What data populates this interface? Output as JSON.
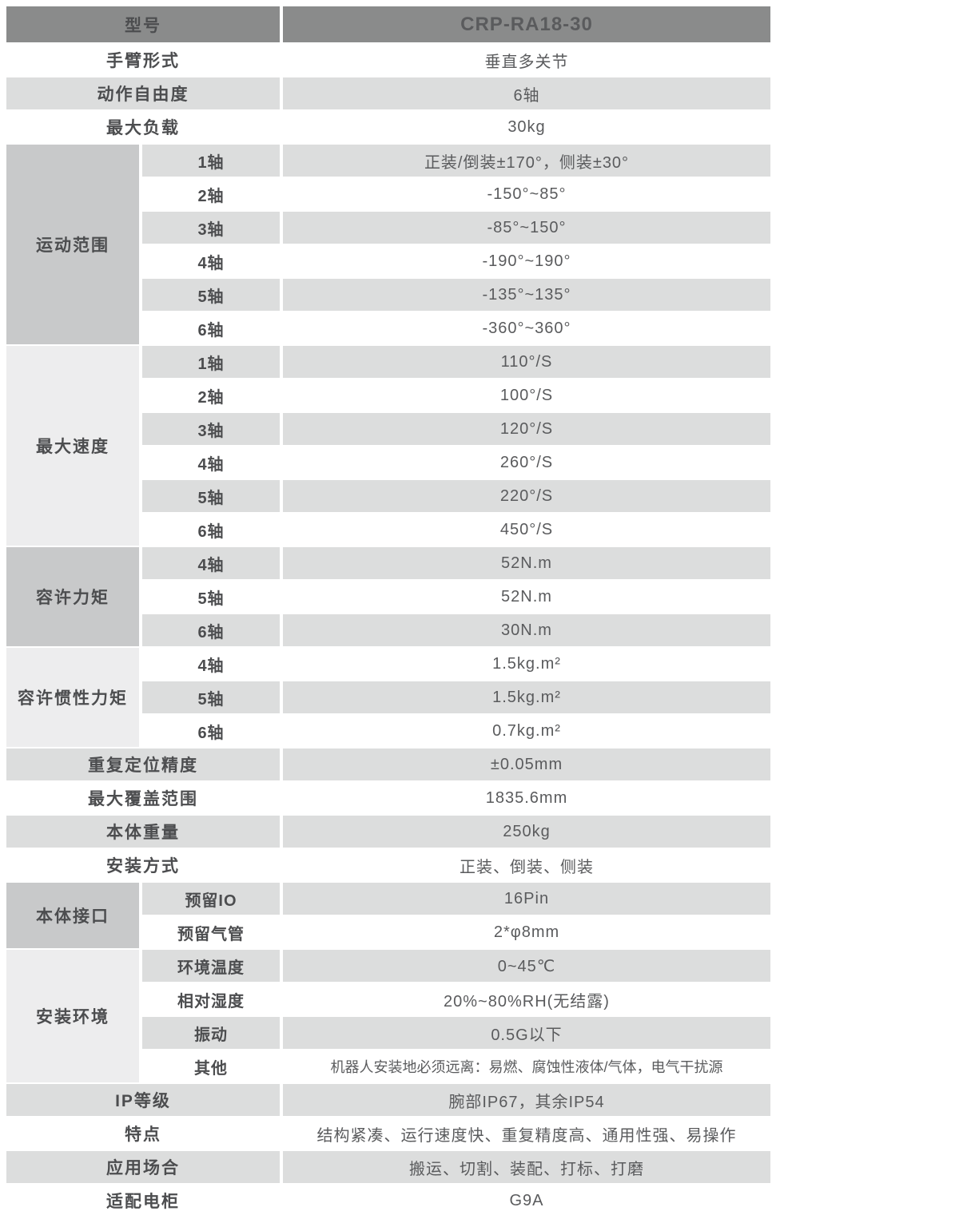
{
  "colors": {
    "header_bg": "#8a8b8b",
    "header_text": "#ffffff",
    "row_gray": "#dcdddd",
    "section_dark": "#c8c9ca",
    "section_light": "#ededee",
    "label_text": "#4c4d4f",
    "value_text": "#5a5b5d"
  },
  "header": {
    "label": "型号",
    "value": "CRP-RA18-30"
  },
  "rows_top": [
    {
      "label": "手臂形式",
      "value": "垂直多关节"
    },
    {
      "label": "动作自由度",
      "value": "6轴"
    },
    {
      "label": "最大负载",
      "value": "30kg"
    }
  ],
  "motion_range": {
    "title": "运动范围",
    "rows": [
      {
        "label": "1轴",
        "value": "正装/倒装±170°，侧装±30°"
      },
      {
        "label": "2轴",
        "value": "-150°~85°"
      },
      {
        "label": "3轴",
        "value": "-85°~150°"
      },
      {
        "label": "4轴",
        "value": "-190°~190°"
      },
      {
        "label": "5轴",
        "value": "-135°~135°"
      },
      {
        "label": "6轴",
        "value": "-360°~360°"
      }
    ]
  },
  "max_speed": {
    "title": "最大速度",
    "rows": [
      {
        "label": "1轴",
        "value": "110°/S"
      },
      {
        "label": "2轴",
        "value": "100°/S"
      },
      {
        "label": "3轴",
        "value": "120°/S"
      },
      {
        "label": "4轴",
        "value": "260°/S"
      },
      {
        "label": "5轴",
        "value": "220°/S"
      },
      {
        "label": "6轴",
        "value": "450°/S"
      }
    ]
  },
  "allow_torque": {
    "title": "容许力矩",
    "rows": [
      {
        "label": "4轴",
        "value": "52N.m"
      },
      {
        "label": "5轴",
        "value": "52N.m"
      },
      {
        "label": "6轴",
        "value": "30N.m"
      }
    ]
  },
  "allow_inertia": {
    "title": "容许惯性力矩",
    "rows": [
      {
        "label": "4轴",
        "value": "1.5kg.m²"
      },
      {
        "label": "5轴",
        "value": "1.5kg.m²"
      },
      {
        "label": "6轴",
        "value": "0.7kg.m²"
      }
    ]
  },
  "rows_mid": [
    {
      "label": "重复定位精度",
      "value": "±0.05mm"
    },
    {
      "label": "最大覆盖范围",
      "value": "1835.6mm"
    },
    {
      "label": "本体重量",
      "value": "250kg"
    },
    {
      "label": "安装方式",
      "value": "正装、倒装、侧装"
    }
  ],
  "body_interface": {
    "title": "本体接口",
    "rows": [
      {
        "label": "预留IO",
        "value": "16Pin"
      },
      {
        "label": "预留气管",
        "value": "2*φ8mm"
      }
    ]
  },
  "install_env": {
    "title": "安装环境",
    "rows": [
      {
        "label": "环境温度",
        "value": "0~45℃"
      },
      {
        "label": "相对湿度",
        "value": "20%~80%RH(无结露)"
      },
      {
        "label": "振动",
        "value": "0.5G以下"
      },
      {
        "label": "其他",
        "value": "机器人安装地必须远离：易燃、腐蚀性液体/气体，电气干扰源"
      }
    ]
  },
  "rows_bottom": [
    {
      "label": "IP等级",
      "value": "腕部IP67，其余IP54"
    },
    {
      "label": "特点",
      "value": "结构紧凑、运行速度快、重复精度高、通用性强、易操作"
    },
    {
      "label": "应用场合",
      "value": "搬运、切割、装配、打标、打磨"
    },
    {
      "label": "适配电柜",
      "value": "G9A"
    }
  ]
}
